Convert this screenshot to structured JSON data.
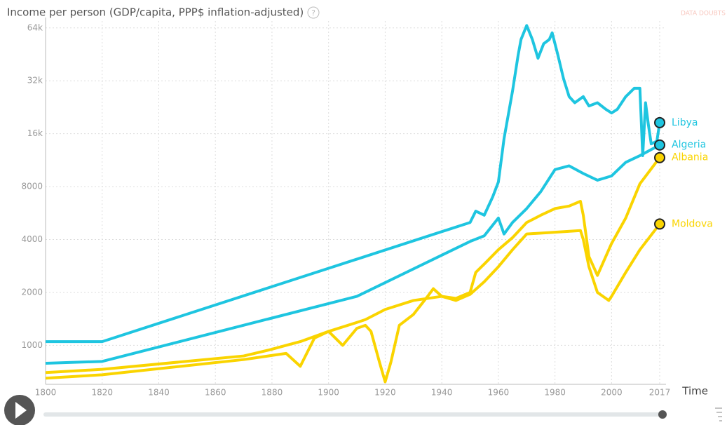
{
  "chart_data": {
    "type": "line",
    "title": "Income per person (GDP/capita, PPP$ inflation-adjusted)",
    "help_icon": "?",
    "data_doubts": "DATA DOUBTS",
    "x_label": "Time",
    "log_y": true,
    "grid": true,
    "xlim": [
      1800,
      2017
    ],
    "xticks": [
      1800,
      1820,
      1840,
      1860,
      1880,
      1900,
      1920,
      1940,
      1960,
      1980,
      2000,
      2017
    ],
    "ylim": [
      600,
      70000
    ],
    "yticks": [
      1000,
      2000,
      4000,
      8000,
      {
        "value": 16000,
        "label": "16k"
      },
      {
        "value": 32000,
        "label": "32k"
      },
      {
        "value": 64000,
        "label": "64k"
      }
    ],
    "series": [
      {
        "name": "Libya",
        "color": "#1ec5e0",
        "x": [
          1800,
          1820,
          1950,
          1952,
          1955,
          1958,
          1960,
          1962,
          1965,
          1967,
          1968,
          1970,
          1972,
          1974,
          1976,
          1978,
          1979,
          1981,
          1983,
          1985,
          1987,
          1990,
          1992,
          1995,
          1998,
          2000,
          2002,
          2005,
          2008,
          2010,
          2011,
          2012,
          2013,
          2014,
          2016,
          2017
        ],
        "values": [
          1050,
          1050,
          5000,
          5800,
          5500,
          7000,
          8500,
          15000,
          28000,
          45000,
          55000,
          66000,
          55000,
          43000,
          52000,
          55000,
          60000,
          45000,
          33000,
          26000,
          24000,
          26000,
          23000,
          24000,
          22000,
          21000,
          22000,
          26000,
          29000,
          29000,
          12000,
          24000,
          18000,
          14000,
          14500,
          18500
        ]
      },
      {
        "name": "Algeria",
        "color": "#1ec5e0",
        "x": [
          1800,
          1820,
          1910,
          1950,
          1955,
          1960,
          1962,
          1965,
          1970,
          1975,
          1980,
          1985,
          1990,
          1995,
          2000,
          2005,
          2010,
          2017
        ],
        "values": [
          790,
          810,
          1900,
          3900,
          4200,
          5300,
          4300,
          5000,
          6000,
          7500,
          10000,
          10500,
          9500,
          8700,
          9200,
          11000,
          12000,
          13800
        ]
      },
      {
        "name": "Albania",
        "color": "#fad400",
        "x": [
          1800,
          1820,
          1870,
          1880,
          1885,
          1890,
          1900,
          1910,
          1913,
          1920,
          1930,
          1940,
          1945,
          1950,
          1952,
          1955,
          1960,
          1965,
          1970,
          1975,
          1980,
          1985,
          1989,
          1990,
          1992,
          1995,
          2000,
          2005,
          2010,
          2017
        ],
        "values": [
          700,
          730,
          870,
          950,
          1000,
          1050,
          1200,
          1350,
          1400,
          1600,
          1800,
          1900,
          1850,
          2000,
          2600,
          2900,
          3500,
          4100,
          5000,
          5500,
          6000,
          6200,
          6600,
          5500,
          3200,
          2500,
          3800,
          5300,
          8300,
          11700
        ]
      },
      {
        "name": "Moldova",
        "color": "#fad400",
        "x": [
          1800,
          1820,
          1870,
          1885,
          1890,
          1895,
          1900,
          1905,
          1910,
          1913,
          1915,
          1918,
          1920,
          1922,
          1925,
          1930,
          1935,
          1937,
          1940,
          1945,
          1950,
          1955,
          1960,
          1965,
          1970,
          1980,
          1989,
          1990,
          1992,
          1995,
          1999,
          2000,
          2005,
          2010,
          2017
        ],
        "values": [
          650,
          680,
          830,
          900,
          760,
          1100,
          1200,
          1000,
          1250,
          1300,
          1200,
          800,
          620,
          800,
          1300,
          1500,
          1900,
          2100,
          1900,
          1800,
          1950,
          2300,
          2800,
          3500,
          4300,
          4400,
          4500,
          4000,
          2800,
          2000,
          1800,
          1900,
          2600,
          3500,
          4900
        ]
      }
    ]
  }
}
